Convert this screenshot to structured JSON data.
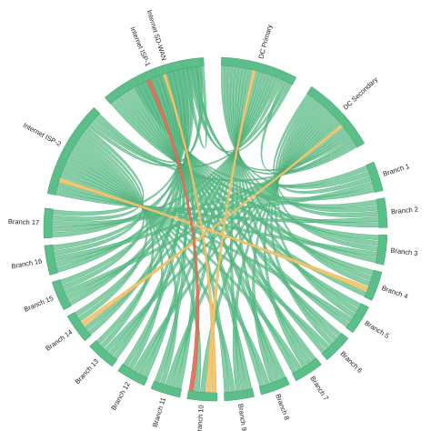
{
  "diagram": {
    "type": "chord",
    "colors": {
      "arc": "#5cbf8a",
      "arc_stroke": "#4aa877",
      "ribbon_default": "#5cbf8a",
      "ribbon_stroke": "#3f9c6b",
      "ribbon_warning": "#f2c46d",
      "ribbon_critical": "#e0705a"
    },
    "nodes": [
      {
        "id": "sdwan",
        "label": "Internet SD-WAN"
      },
      {
        "id": "dcp",
        "label": "DC Primary"
      },
      {
        "id": "dcs",
        "label": "DC Secondary"
      },
      {
        "id": "b1",
        "label": "Branch 1"
      },
      {
        "id": "b2",
        "label": "Branch 2"
      },
      {
        "id": "b3",
        "label": "Branch 3"
      },
      {
        "id": "b4",
        "label": "Branch 4"
      },
      {
        "id": "b5",
        "label": "Branch 5"
      },
      {
        "id": "b6",
        "label": "Branch 6"
      },
      {
        "id": "b7",
        "label": "Branch 7"
      },
      {
        "id": "b8",
        "label": "Branch 8"
      },
      {
        "id": "b9",
        "label": "Branch 9"
      },
      {
        "id": "b10",
        "label": "Branch 10"
      },
      {
        "id": "b11",
        "label": "Branch 11"
      },
      {
        "id": "b12",
        "label": "Branch 12"
      },
      {
        "id": "b13",
        "label": "Branch 13"
      },
      {
        "id": "b14",
        "label": "Branch 14"
      },
      {
        "id": "b15",
        "label": "Branch 15"
      },
      {
        "id": "b16",
        "label": "Branch 16"
      },
      {
        "id": "b17",
        "label": "Branch 17"
      },
      {
        "id": "isp2",
        "label": "Internet ISP-2"
      },
      {
        "id": "isp1",
        "label": "Internet ISP-1"
      }
    ],
    "hub_nodes": [
      "sdwan",
      "dcp",
      "dcs",
      "isp2",
      "isp1"
    ],
    "highlight_links": [
      {
        "source": "isp1",
        "target": "b10",
        "status": "critical"
      },
      {
        "source": "sdwan",
        "target": "b10",
        "status": "warning"
      },
      {
        "source": "dcp",
        "target": "b10",
        "status": "warning"
      },
      {
        "source": "dcs",
        "target": "b14",
        "status": "warning"
      },
      {
        "source": "isp2",
        "target": "b4",
        "status": "warning"
      }
    ]
  }
}
